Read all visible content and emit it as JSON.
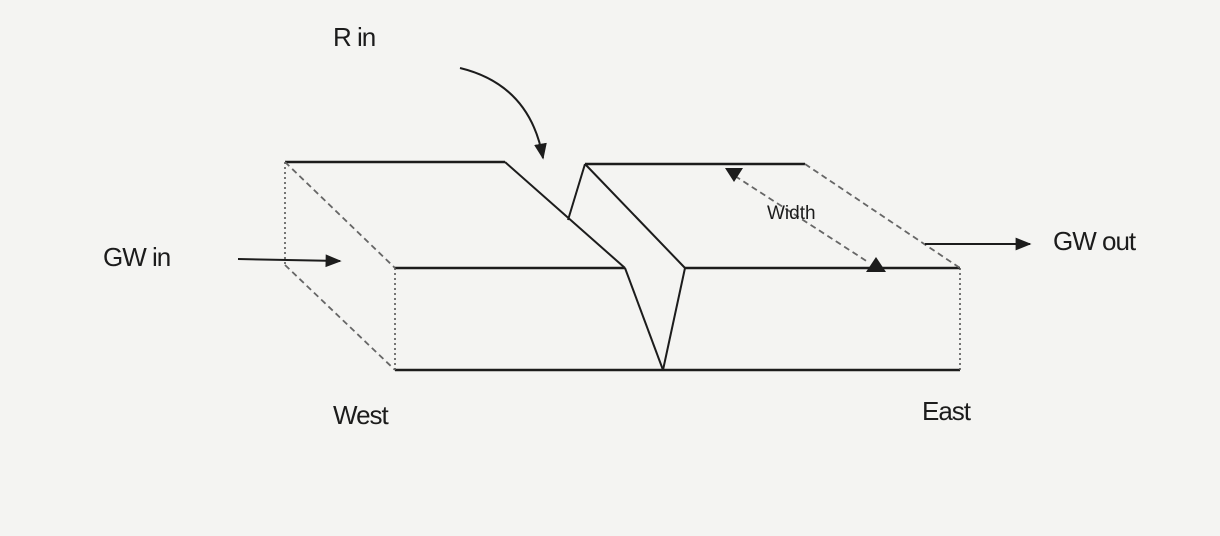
{
  "diagram": {
    "labels": {
      "recharge_in": "R in",
      "groundwater_in": "GW in",
      "groundwater_out": "GW out",
      "width": "Width",
      "west": "West",
      "east": "East"
    },
    "colors": {
      "background": "#f4f4f2",
      "line": "#1c1c1c",
      "dashed": "#666666"
    }
  }
}
